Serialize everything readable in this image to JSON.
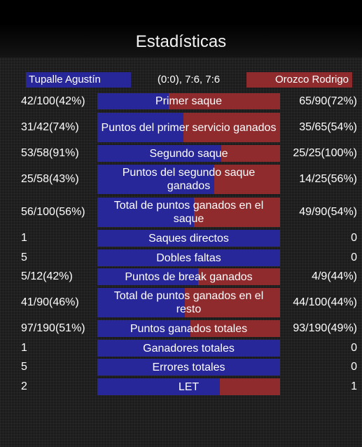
{
  "title": "Estadísticas",
  "header": {
    "player1": "Tupalle Agustín",
    "score": "(0:0), 7:6, 7:6",
    "player2": "Orozco Rodrigo"
  },
  "colors": {
    "player1": "#27279a",
    "player2": "#8f2a2d"
  },
  "stats": [
    {
      "label": "Primer saque",
      "left": "42/100(42%)",
      "right": "65/90(72%)",
      "share": 0.39
    },
    {
      "label": "Puntos del primer servicio ganados",
      "left": "31/42(74%)",
      "right": "35/65(54%)",
      "share": 0.47
    },
    {
      "label": "Segundo saque",
      "left": "53/58(91%)",
      "right": "25/25(100%)",
      "share": 0.68
    },
    {
      "label": "Puntos del segundo saque ganados",
      "left": "25/58(43%)",
      "right": "14/25(56%)",
      "share": 0.64
    },
    {
      "label": "Total de puntos ganados en el saque",
      "left": "56/100(56%)",
      "right": "49/90(54%)",
      "share": 0.53
    },
    {
      "label": "Saques directos",
      "left": "1",
      "right": "0",
      "share": 1.0
    },
    {
      "label": "Dobles faltas",
      "left": "5",
      "right": "0",
      "share": 1.0
    },
    {
      "label": "Puntos de break ganados",
      "left": "5/12(42%)",
      "right": "4/9(44%)",
      "share": 0.55
    },
    {
      "label": "Total de puntos ganados en el resto",
      "left": "41/90(46%)",
      "right": "44/100(44%)",
      "share": 0.48
    },
    {
      "label": "Puntos ganados totales",
      "left": "97/190(51%)",
      "right": "93/190(49%)",
      "share": 0.51
    },
    {
      "label": "Ganadores totales",
      "left": "1",
      "right": "0",
      "share": 1.0
    },
    {
      "label": "Errores totales",
      "left": "5",
      "right": "0",
      "share": 1.0
    },
    {
      "label": "LET",
      "left": "2",
      "right": "1",
      "share": 0.67
    }
  ]
}
